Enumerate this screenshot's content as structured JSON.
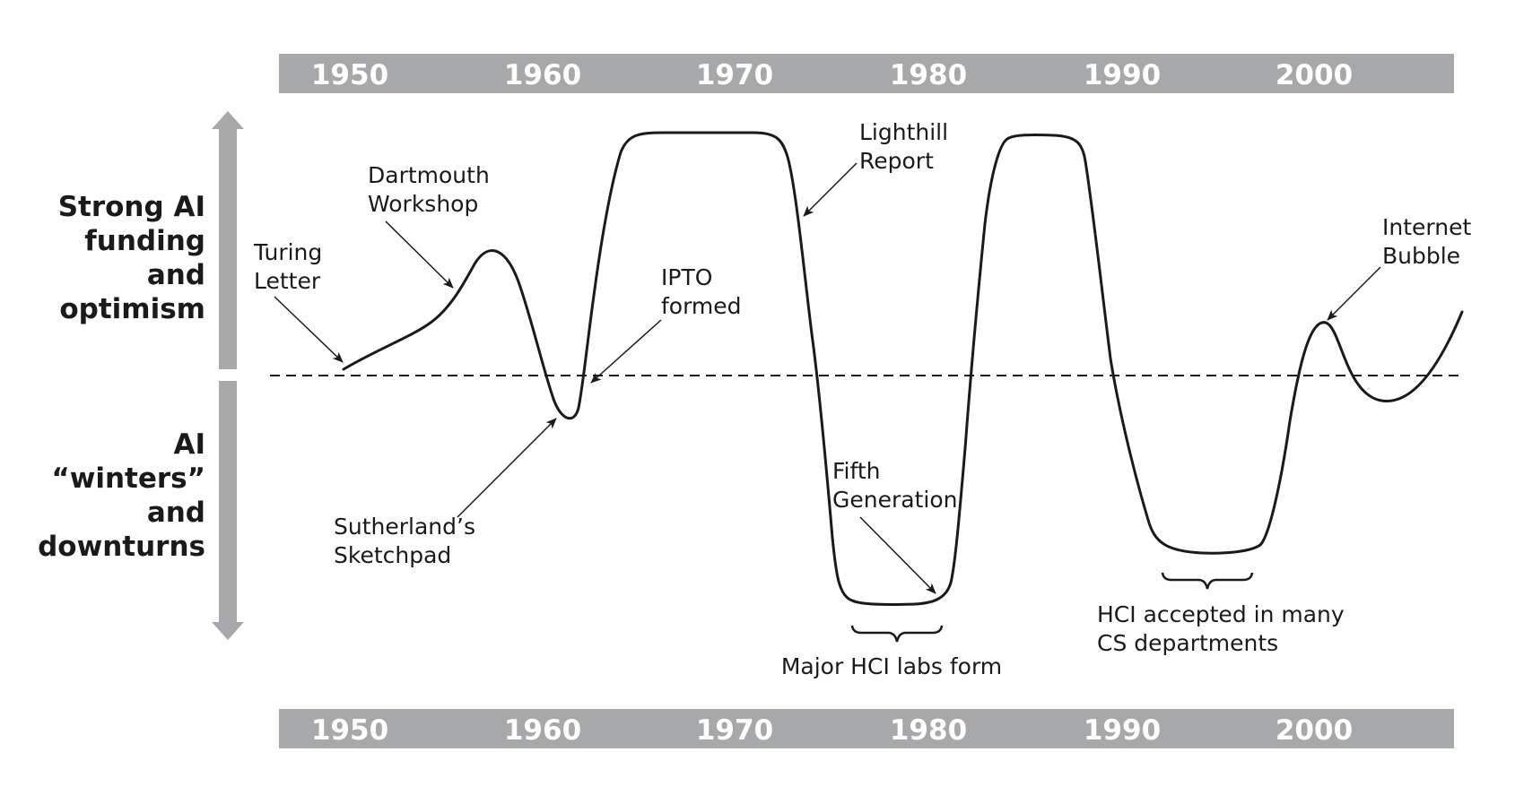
{
  "colors": {
    "band": "#a7a8aa",
    "ink": "#1a1a1a",
    "year_text": "#ffffff"
  },
  "top_band": {
    "years": [
      "1950",
      "1960",
      "1970",
      "1980",
      "1990",
      "2000"
    ]
  },
  "bottom_band": {
    "years": [
      "1950",
      "1960",
      "1970",
      "1980",
      "1990",
      "2000"
    ]
  },
  "axis": {
    "up_label": [
      "Strong AI",
      "funding",
      "and",
      "optimism"
    ],
    "down_label": [
      "AI",
      "“winters”",
      "and",
      "downturns"
    ]
  },
  "annotations": {
    "turing": [
      "Turing",
      "Letter"
    ],
    "dartmouth": [
      "Dartmouth",
      "Workshop"
    ],
    "ipto": [
      "IPTO",
      "formed"
    ],
    "sutherland": [
      "Sutherland’s",
      "Sketchpad"
    ],
    "lighthill": [
      "Lighthill",
      "Report"
    ],
    "fifth": [
      "Fifth",
      "Generation"
    ],
    "major_hci": [
      "Major HCI labs form"
    ],
    "hci_cs": [
      "HCI accepted in many",
      "CS departments"
    ],
    "internet": [
      "Internet",
      "Bubble"
    ]
  }
}
